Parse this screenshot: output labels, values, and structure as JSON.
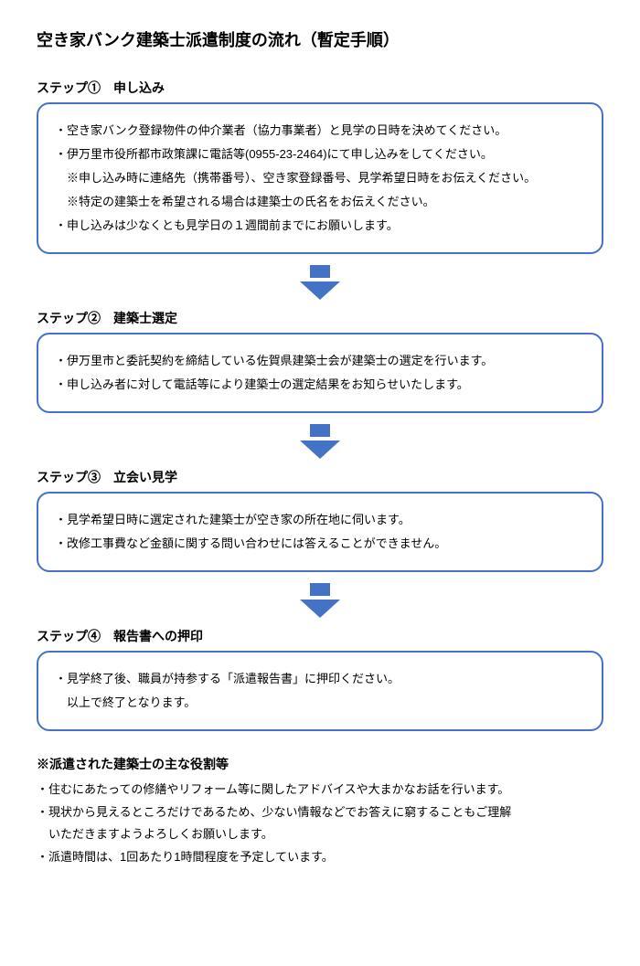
{
  "title": "空き家バンク建築士派遣制度の流れ（暫定手順）",
  "colors": {
    "box_border": "#4472c4",
    "arrow_fill": "#4472c4",
    "text": "#000000",
    "background": "#ffffff"
  },
  "typography": {
    "title_fontsize": 18,
    "label_fontsize": 14,
    "body_fontsize": 13
  },
  "steps": [
    {
      "label": "ステップ①　申し込み",
      "lines": [
        "・空き家バンク登録物件の仲介業者（協力事業者）と見学の日時を決めてください。",
        "・伊万里市役所都市政策課に電話等(0955-23-2464)にて申し込みをしてください。",
        "　※申し込み時に連絡先（携帯番号）、空き家登録番号、見学希望日時をお伝えください。",
        "　※特定の建築士を希望される場合は建築士の氏名をお伝えください。",
        "・申し込みは少なくとも見学日の１週間前までにお願いします。"
      ]
    },
    {
      "label": "ステップ②　建築士選定",
      "lines": [
        "・伊万里市と委託契約を締結している佐賀県建築士会が建築士の選定を行います。",
        "・申し込み者に対して電話等により建築士の選定結果をお知らせいたします。"
      ]
    },
    {
      "label": "ステップ③　立会い見学",
      "lines": [
        "・見学希望日時に選定された建築士が空き家の所在地に伺います。",
        "・改修工事費など金額に関する問い合わせには答えることができません。"
      ]
    },
    {
      "label": "ステップ④　報告書への押印",
      "lines": [
        "・見学終了後、職員が持参する「派遣報告書」に押印ください。",
        "　以上で終了となります。"
      ]
    }
  ],
  "notes_title": "※派遣された建築士の主な役割等",
  "notes": [
    "・住むにあたっての修繕やリフォーム等に関したアドバイスや大まかなお話を行います。",
    "・現状から見えるところだけであるため、少ない情報などでお答えに窮することもご理解",
    "　いただきますようよろしくお願いします。",
    "・派遣時間は、1回あたり1時間程度を予定しています。"
  ]
}
